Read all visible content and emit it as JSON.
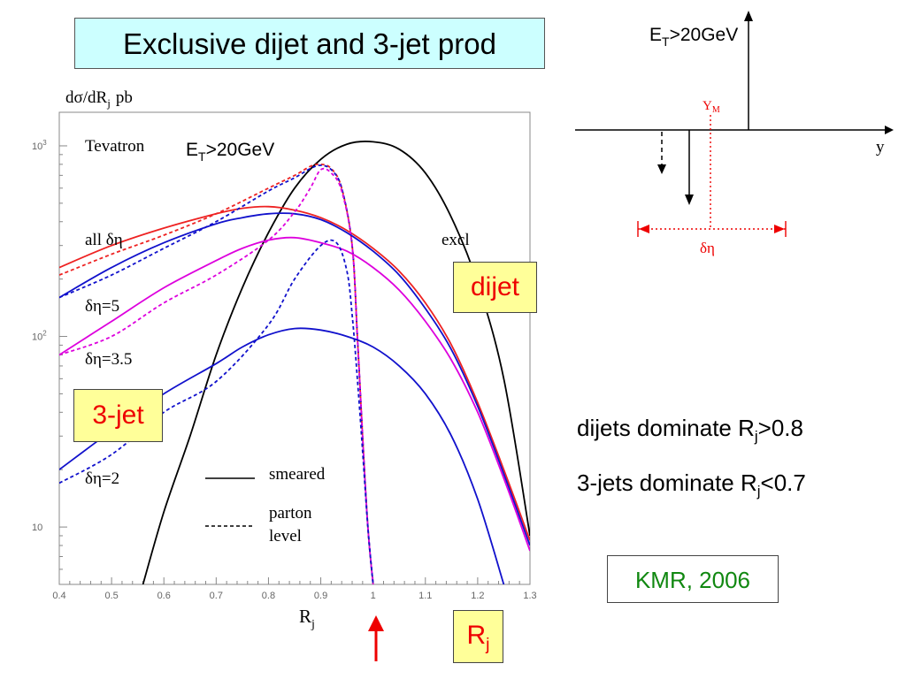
{
  "slide": {
    "title": "Exclusive dijet and 3-jet prod",
    "dijet_tag": "dijet",
    "threejet_tag": "3-jet",
    "rj_tag_main": "R",
    "rj_tag_sub": "j",
    "credit": "KMR, 2006",
    "note1_main": "dijets dominate R",
    "note1_sub": "j",
    "note1_end": ">0.8",
    "note2_main": "3-jets dominate R",
    "note2_sub": "j",
    "note2_end": "<0.7",
    "colors": {
      "title_bg": "#ccffff",
      "tag_bg": "#ffff99",
      "tag_text": "#ee0000",
      "credit": "#118811"
    }
  },
  "diagram": {
    "et_label_main": "E",
    "et_label_sub": "T",
    "et_label_end": ">20GeV",
    "ym_label_main": "Y",
    "ym_label_sub": "M",
    "y_label": "y",
    "deta_label": "δη"
  },
  "chart_data": {
    "type": "line",
    "ylabel_main": "dσ/dR",
    "ylabel_sub": "j",
    "ylabel_unit": "pb",
    "xlabel_main": "R",
    "xlabel_sub": "j",
    "yscale": "log",
    "xlim": [
      0.4,
      1.3
    ],
    "ylim": [
      5,
      1500
    ],
    "x_ticks": [
      "0.4",
      "0.5",
      "0.6",
      "0.7",
      "0.8",
      "0.9",
      "1",
      "1.1",
      "1.2",
      "1.3"
    ],
    "y_ticks": [
      {
        "value": 10,
        "base": "10",
        "exp": ""
      },
      {
        "value": 100,
        "base": "10",
        "exp": "2"
      },
      {
        "value": 1000,
        "base": "10",
        "exp": "3"
      }
    ],
    "annotations": {
      "tevatron": "Tevatron",
      "et_main": "E",
      "et_sub": "T",
      "et_end": ">20GeV",
      "all": "all δη",
      "excl": "excl",
      "d5": "δη=5",
      "d35": "δη=3.5",
      "d2": "δη=2",
      "smeared": "smeared",
      "parton1": "parton",
      "parton2": "level"
    },
    "arrow_at_x": 1.0,
    "series": [
      {
        "color": "#000000",
        "dash": false,
        "x": [
          0.56,
          0.6,
          0.65,
          0.7,
          0.75,
          0.8,
          0.85,
          0.9,
          0.95,
          1.0,
          1.05,
          1.1,
          1.15,
          1.2,
          1.25,
          1.3
        ],
        "y": [
          5,
          12,
          30,
          80,
          180,
          350,
          600,
          850,
          1020,
          1050,
          960,
          720,
          420,
          190,
          60,
          9
        ]
      },
      {
        "color": "#ee2222",
        "dash": false,
        "x": [
          0.4,
          0.5,
          0.6,
          0.7,
          0.75,
          0.8,
          0.85,
          0.9,
          0.95,
          1.0,
          1.05,
          1.1,
          1.15,
          1.2,
          1.25,
          1.3
        ],
        "y": [
          230,
          300,
          370,
          440,
          470,
          480,
          460,
          420,
          360,
          290,
          220,
          150,
          90,
          45,
          20,
          8.5
        ]
      },
      {
        "color": "#ee2222",
        "dash": true,
        "x": [
          0.4,
          0.5,
          0.6,
          0.7,
          0.8,
          0.85,
          0.88,
          0.9,
          0.92,
          0.94,
          0.96,
          0.97,
          0.98,
          0.99,
          1.0
        ],
        "y": [
          210,
          270,
          340,
          440,
          600,
          700,
          780,
          800,
          760,
          600,
          300,
          100,
          30,
          10,
          5
        ]
      },
      {
        "color": "#1111cc",
        "dash": false,
        "x": [
          0.4,
          0.5,
          0.6,
          0.7,
          0.75,
          0.8,
          0.85,
          0.9,
          0.95,
          1.0,
          1.05,
          1.1,
          1.15,
          1.2,
          1.25,
          1.3
        ],
        "y": [
          160,
          230,
          310,
          390,
          420,
          440,
          440,
          410,
          350,
          280,
          210,
          140,
          85,
          43,
          19,
          8
        ]
      },
      {
        "color": "#1111cc",
        "dash": true,
        "x": [
          0.4,
          0.5,
          0.6,
          0.7,
          0.8,
          0.85,
          0.88,
          0.9,
          0.92,
          0.94,
          0.96,
          0.97,
          0.98,
          0.99,
          1.0
        ],
        "y": [
          160,
          210,
          290,
          400,
          580,
          680,
          760,
          790,
          750,
          600,
          300,
          100,
          30,
          10,
          5
        ]
      },
      {
        "color": "#dd00dd",
        "dash": false,
        "x": [
          0.4,
          0.5,
          0.6,
          0.7,
          0.75,
          0.8,
          0.85,
          0.9,
          0.95,
          1.0,
          1.05,
          1.1,
          1.15,
          1.2,
          1.25,
          1.3
        ],
        "y": [
          80,
          120,
          180,
          250,
          290,
          320,
          330,
          310,
          280,
          230,
          175,
          120,
          75,
          40,
          18,
          7.5
        ]
      },
      {
        "color": "#dd00dd",
        "dash": true,
        "x": [
          0.4,
          0.5,
          0.6,
          0.7,
          0.8,
          0.85,
          0.88,
          0.9,
          0.92,
          0.94,
          0.96,
          0.97,
          0.98,
          0.99,
          1.0
        ],
        "y": [
          80,
          100,
          150,
          210,
          320,
          450,
          600,
          750,
          720,
          580,
          300,
          100,
          30,
          10,
          5
        ]
      },
      {
        "color": "#1111cc",
        "dash": false,
        "x": [
          0.4,
          0.5,
          0.6,
          0.7,
          0.75,
          0.8,
          0.85,
          0.9,
          0.95,
          1.0,
          1.05,
          1.1,
          1.15,
          1.2,
          1.25
        ],
        "y": [
          20,
          32,
          50,
          72,
          88,
          102,
          110,
          108,
          100,
          88,
          70,
          50,
          30,
          14,
          5
        ]
      },
      {
        "color": "#1111cc",
        "dash": true,
        "x": [
          0.4,
          0.5,
          0.6,
          0.7,
          0.8,
          0.85,
          0.9,
          0.93,
          0.95,
          0.96,
          0.97,
          0.98,
          0.99,
          1.0
        ],
        "y": [
          17,
          24,
          40,
          58,
          115,
          200,
          300,
          310,
          220,
          130,
          60,
          25,
          10,
          5
        ]
      }
    ]
  }
}
